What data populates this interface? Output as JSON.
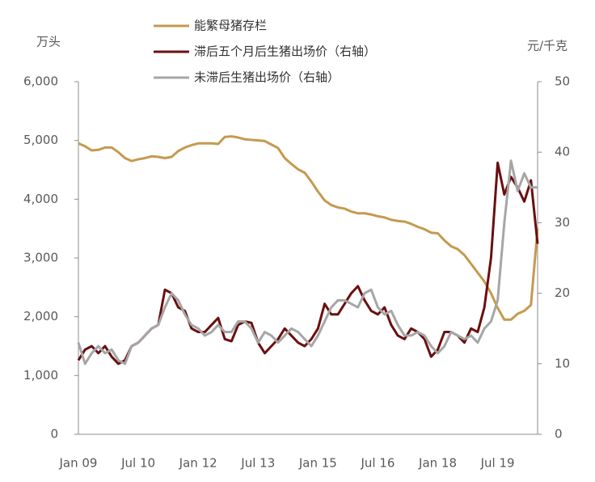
{
  "chart_data": {
    "type": "line",
    "y_unit": "万头",
    "y2_unit": "元/千克",
    "categories": [
      "Jan 09",
      null,
      null,
      null,
      null,
      null,
      null,
      null,
      null,
      "Jul 10",
      null,
      null,
      null,
      null,
      null,
      null,
      null,
      null,
      "Jan 12",
      null,
      null,
      null,
      null,
      null,
      null,
      null,
      null,
      "Jul 13",
      null,
      null,
      null,
      null,
      null,
      null,
      null,
      null,
      "Jan 15",
      null,
      null,
      null,
      null,
      null,
      null,
      null,
      null,
      "Jul 16",
      null,
      null,
      null,
      null,
      null,
      null,
      null,
      null,
      "Jan 18",
      null,
      null,
      null,
      null,
      null,
      null,
      null,
      null,
      "Jul 19",
      null,
      null,
      null,
      null,
      null,
      null
    ],
    "series": [
      {
        "name": "能繁母猪存栏",
        "color": "#c49a4e",
        "axis": "y",
        "values": [
          4950,
          4900,
          4830,
          4840,
          4880,
          4880,
          4800,
          4700,
          4650,
          4680,
          4700,
          4730,
          4720,
          4700,
          4720,
          4820,
          4880,
          4920,
          4950,
          4950,
          4950,
          4940,
          5060,
          5070,
          5050,
          5020,
          5010,
          5000,
          4990,
          4930,
          4870,
          4700,
          4600,
          4510,
          4450,
          4300,
          4130,
          3980,
          3900,
          3860,
          3840,
          3790,
          3760,
          3760,
          3740,
          3710,
          3690,
          3650,
          3630,
          3620,
          3580,
          3530,
          3490,
          3430,
          3420,
          3300,
          3200,
          3150,
          3050,
          2900,
          2750,
          2600,
          2400,
          2150,
          1950,
          1950,
          2050,
          2100,
          2200,
          3500
        ]
      },
      {
        "name": "滞后五个月后生猪出场价（右轴）",
        "color": "#6b0f10",
        "axis": "y2",
        "values": [
          10.5,
          12,
          12.5,
          11.5,
          12.5,
          11,
          10,
          10.5,
          12.5,
          13,
          14,
          15,
          15.5,
          20.5,
          20,
          18,
          17.5,
          15,
          14.5,
          14.5,
          15.5,
          16.5,
          13.5,
          13.2,
          15.5,
          16,
          15.8,
          13,
          11.5,
          12.5,
          13.5,
          15,
          14,
          13,
          12.5,
          13.5,
          15,
          18.5,
          17,
          17,
          18.5,
          20,
          21,
          19,
          17.5,
          17,
          18,
          15.5,
          14,
          13.5,
          15,
          14.5,
          13.5,
          11,
          12,
          14.5,
          14.5,
          14,
          13,
          15,
          14.5,
          18,
          25,
          38.5,
          34,
          36.5,
          35,
          33,
          36,
          27
        ]
      },
      {
        "name": "未滞后生猪出场价（右轴）",
        "color": "#a6a6a6",
        "axis": "y2",
        "values": [
          13,
          10,
          11.5,
          12.5,
          11.5,
          12,
          10.5,
          10,
          12.5,
          13,
          14,
          15,
          15.5,
          18,
          20,
          19,
          17,
          15.5,
          15,
          14,
          14.5,
          15.5,
          14.5,
          14.5,
          16,
          16,
          15,
          13,
          14.5,
          14,
          13,
          14,
          15,
          14.5,
          13.5,
          12.5,
          14,
          16,
          18,
          19,
          19,
          18.5,
          18,
          20,
          20.5,
          18,
          17,
          17.5,
          15.5,
          14,
          14,
          14.5,
          14,
          12.5,
          11.5,
          12.5,
          14.5,
          14,
          13.5,
          14,
          13,
          15,
          16,
          19,
          30,
          38.8,
          34.5,
          37,
          35,
          35
        ]
      }
    ],
    "ylim": [
      0,
      6000
    ],
    "yticks": [
      0,
      {
        "value": 1000,
        "label": "1,000"
      },
      {
        "value": 2000,
        "label": "2,000"
      },
      {
        "value": 3000,
        "label": "3,000"
      },
      {
        "value": 4000,
        "label": "4,000"
      },
      {
        "value": 5000,
        "label": "5,000"
      },
      {
        "value": 6000,
        "label": "6,000"
      }
    ],
    "y2lim": [
      0,
      50
    ],
    "y2ticks": [
      0,
      10,
      20,
      30,
      40,
      50
    ],
    "grid": false
  }
}
